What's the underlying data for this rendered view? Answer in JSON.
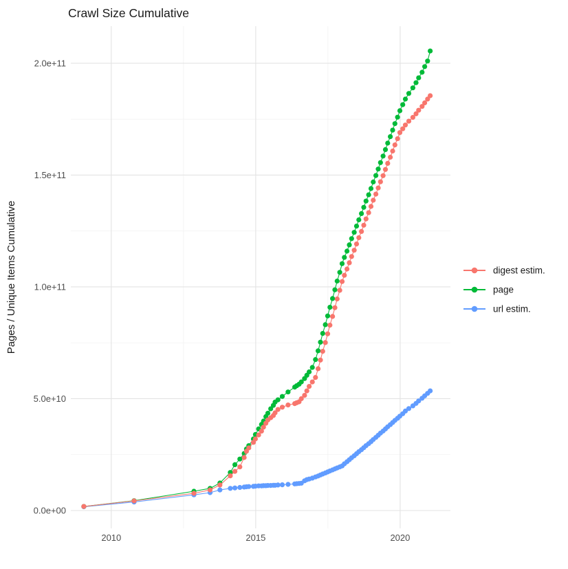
{
  "title": "Crawl Size Cumulative",
  "axes": {
    "y_title": "Pages / Unique Items Cumulative",
    "x_ticks": [
      {
        "value": 2010,
        "label": "2010"
      },
      {
        "value": 2015,
        "label": "2015"
      },
      {
        "value": 2020,
        "label": "2020"
      }
    ],
    "x_minor": [
      2012.5,
      2017.5
    ],
    "y_ticks": [
      {
        "value_e9": 0,
        "label": "0.0e+00"
      },
      {
        "value_e9": 50,
        "label": "5.0e+10"
      },
      {
        "value_e9": 100,
        "label": "1.0e+11"
      },
      {
        "value_e9": 150,
        "label": "1.5e+11"
      },
      {
        "value_e9": 200,
        "label": "2.0e+11"
      }
    ],
    "y_minor_e9": [
      25,
      75,
      125,
      175
    ],
    "x_range": [
      2008.6,
      2021.74
    ],
    "y_range_e9": [
      -8,
      216.6
    ]
  },
  "legend": {
    "position": "right",
    "items": [
      {
        "label": "digest estim.",
        "color": "#F8766D"
      },
      {
        "label": "page",
        "color": "#00BA38"
      },
      {
        "label": "url estim.",
        "color": "#619CFF"
      }
    ]
  },
  "colors": {
    "background": "#ffffff",
    "grid_major": "#e3e3e3",
    "grid_minor": "#f1f1f1",
    "tick_text": "#4d4d4d",
    "title_text": "#1a1a1a"
  },
  "chart_data": {
    "type": "line",
    "title": "Crawl Size Cumulative",
    "xlabel": "",
    "ylabel": "Pages / Unique Items Cumulative",
    "value_unit": "items (values_e9 are in billions, i.e. 1e9)",
    "grid": true,
    "legend_position": "right",
    "draw_order": [
      "url estim.",
      "page",
      "digest estim."
    ],
    "x_years": [
      2009.05,
      2010.79,
      2012.86,
      2013.42,
      2013.76,
      2014.12,
      2014.28,
      2014.45,
      2014.6,
      2014.68,
      2014.76,
      2014.92,
      2014.99,
      2015.1,
      2015.2,
      2015.27,
      2015.35,
      2015.42,
      2015.52,
      2015.61,
      2015.67,
      2015.77,
      2015.92,
      2016.12,
      2016.35,
      2016.42,
      2016.5,
      2016.58,
      2016.69,
      2016.77,
      2016.85,
      2016.96,
      2017.07,
      2017.16,
      2017.24,
      2017.32,
      2017.41,
      2017.49,
      2017.57,
      2017.66,
      2017.74,
      2017.82,
      2017.91,
      2017.99,
      2018.07,
      2018.16,
      2018.24,
      2018.32,
      2018.41,
      2018.49,
      2018.57,
      2018.66,
      2018.74,
      2018.82,
      2018.91,
      2018.99,
      2019.07,
      2019.16,
      2019.24,
      2019.32,
      2019.41,
      2019.49,
      2019.57,
      2019.66,
      2019.74,
      2019.82,
      2019.91,
      2019.99,
      2020.09,
      2020.18,
      2020.3,
      2020.44,
      2020.55,
      2020.64,
      2020.76,
      2020.85,
      2020.95,
      2021.04
    ],
    "series": [
      {
        "name": "digest estim.",
        "color": "#F8766D",
        "values_e9": [
          1.8,
          4.3,
          7.7,
          9.2,
          11.4,
          15.5,
          17.5,
          19.5,
          23.7,
          26.5,
          28,
          30.5,
          32,
          33.8,
          35.5,
          37.3,
          39,
          40.5,
          41.5,
          42.5,
          43.7,
          45.2,
          46.2,
          47.2,
          47.8,
          48.2,
          48.6,
          50,
          51.5,
          53.5,
          55.5,
          57.5,
          59.5,
          63.4,
          67.3,
          71.2,
          75.1,
          79,
          82.9,
          86.8,
          90.7,
          94.6,
          98.5,
          102.4,
          105.2,
          108,
          110.8,
          113.6,
          116.4,
          119.2,
          122,
          124.8,
          127.6,
          130.4,
          133.2,
          136,
          138.75,
          141.5,
          144.25,
          147,
          149.75,
          152.5,
          155.25,
          158,
          160.75,
          163.5,
          166.25,
          169,
          170.7,
          172.4,
          174.1,
          175.8,
          177.4,
          179,
          180.7,
          182.3,
          184,
          185.5
        ]
      },
      {
        "name": "page",
        "color": "#00BA38",
        "values_e9": [
          1.8,
          4.4,
          8.6,
          9.9,
          12.3,
          17,
          20.5,
          23,
          25.5,
          27.5,
          29,
          32,
          34,
          36.5,
          38.5,
          40,
          42,
          43.5,
          45.5,
          47,
          48.5,
          49.5,
          51,
          53,
          55.2,
          55.8,
          56.5,
          57.5,
          59,
          60.5,
          62,
          64,
          67.5,
          71.4,
          75.3,
          79.2,
          83.1,
          87,
          90.9,
          94.8,
          98.7,
          102.6,
          106.5,
          110.4,
          113.2,
          116,
          118.8,
          121.6,
          124.4,
          127.2,
          130,
          132.8,
          135.6,
          138.4,
          141.2,
          144,
          146.9,
          149.8,
          152.7,
          155.6,
          158.5,
          161.4,
          164.3,
          167.2,
          170.1,
          173,
          175.9,
          178.8,
          181.5,
          184,
          186.5,
          189,
          191.3,
          193.5,
          196,
          198.5,
          201,
          205.5
        ]
      },
      {
        "name": "url estim.",
        "color": "#619CFF",
        "values_e9": [
          1.7,
          3.8,
          7.0,
          8.0,
          9.2,
          9.9,
          10.1,
          10.3,
          10.5,
          10.6,
          10.7,
          10.8,
          10.9,
          11.0,
          11.0,
          11.1,
          11.1,
          11.2,
          11.2,
          11.3,
          11.3,
          11.4,
          11.5,
          11.7,
          11.9,
          12.0,
          12.1,
          12.2,
          13.3,
          13.8,
          14.1,
          14.5,
          15.0,
          15.45,
          15.9,
          16.35,
          16.8,
          17.25,
          17.7,
          18.15,
          18.6,
          19.05,
          19.5,
          19.95,
          20.9,
          21.8,
          22.7,
          23.6,
          24.5,
          25.4,
          26.3,
          27.2,
          28.1,
          29,
          29.9,
          30.8,
          31.75,
          32.7,
          33.65,
          34.6,
          35.55,
          36.5,
          37.45,
          38.4,
          39.35,
          40.3,
          41.25,
          42.2,
          43.3,
          44.5,
          45.6,
          46.8,
          47.9,
          49,
          50.2,
          51.3,
          52.4,
          53.5
        ]
      }
    ]
  }
}
